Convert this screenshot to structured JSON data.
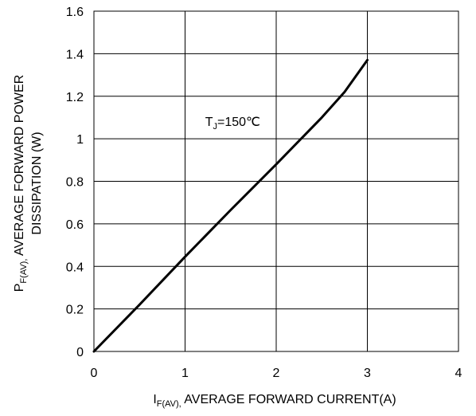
{
  "chart_data": {
    "type": "line",
    "x_ticks": [
      "0",
      "1",
      "2",
      "3",
      "4"
    ],
    "y_ticks": [
      "0",
      "0.2",
      "0.4",
      "0.6",
      "0.8",
      "1",
      "1.2",
      "1.4",
      "1.6"
    ],
    "xlim": [
      0,
      4
    ],
    "ylim": [
      0,
      1.6
    ],
    "grid": true,
    "xlabel": {
      "main": "I",
      "sub": "F(AV),",
      "rest": " AVERAGE FORWARD CURRENT(A)"
    },
    "ylabel": {
      "main": "P",
      "sub": "F(AV),",
      "line1_rest": " AVERAGE FORWARD POWER",
      "line2": "DISSIPATION (W)"
    },
    "annotation": {
      "main": "T",
      "sub": "J",
      "rest": "=150℃",
      "x": 1.22,
      "y": 1.06
    },
    "series": [
      {
        "color": "#000000",
        "x": [
          0,
          0.5,
          1.0,
          1.5,
          2.0,
          2.5,
          2.75,
          3.0
        ],
        "y": [
          0,
          0.22,
          0.445,
          0.665,
          0.88,
          1.1,
          1.22,
          1.37
        ]
      }
    ]
  }
}
